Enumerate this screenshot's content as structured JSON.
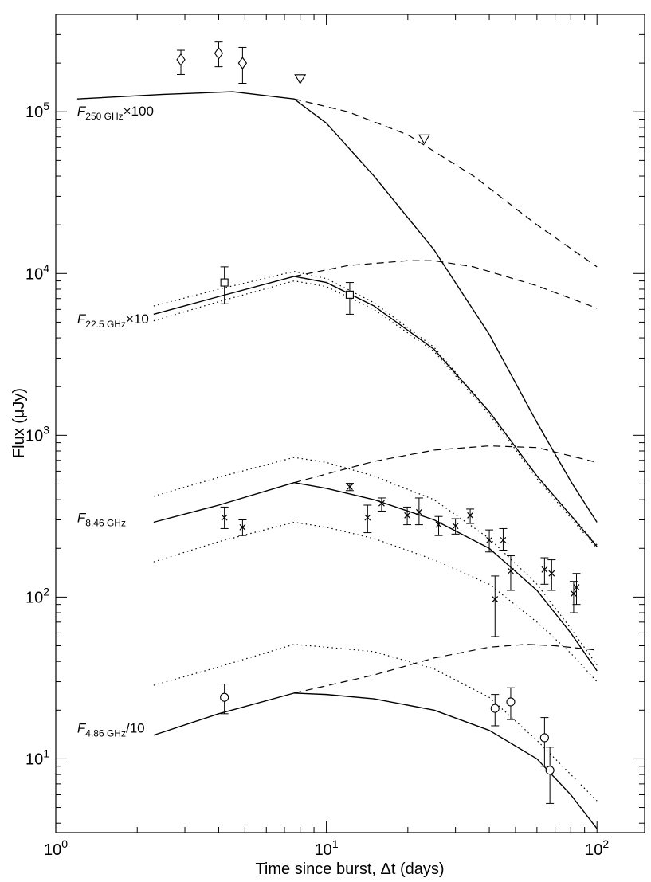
{
  "chart_data": {
    "type": "line",
    "xscale": "log",
    "yscale": "log",
    "xlim": [
      1,
      150
    ],
    "ylim": [
      3.5,
      400000
    ],
    "xlabel": "Time since burst, Δt  (days)",
    "ylabel": "Flux  (μJy)",
    "x_ticks": [
      {
        "value": 1,
        "mantissa": "10",
        "exp": "0"
      },
      {
        "value": 10,
        "mantissa": "10",
        "exp": "1"
      },
      {
        "value": 100,
        "mantissa": "10",
        "exp": "2"
      }
    ],
    "y_ticks": [
      {
        "value": 10,
        "mantissa": "10",
        "exp": "1"
      },
      {
        "value": 100,
        "mantissa": "10",
        "exp": "2"
      },
      {
        "value": 1000,
        "mantissa": "10",
        "exp": "3"
      },
      {
        "value": 10000,
        "mantissa": "10",
        "exp": "4"
      },
      {
        "value": 100000,
        "mantissa": "10",
        "exp": "5"
      }
    ],
    "series": [
      {
        "name": "F250GHz x100",
        "label": {
          "prefix": "F",
          "sub": "250 GHz",
          "suffix": "×100",
          "x": 1.2,
          "y": 95000
        },
        "models": {
          "solid": [
            [
              1.2,
              120000
            ],
            [
              2.5,
              128000
            ],
            [
              4.5,
              133000
            ],
            [
              7.6,
              120000
            ],
            [
              10,
              85000
            ],
            [
              15,
              40000
            ],
            [
              25,
              14000
            ],
            [
              40,
              4200
            ],
            [
              60,
              1200
            ],
            [
              80,
              520
            ],
            [
              100,
              290
            ]
          ],
          "dashed": [
            [
              7.6,
              120000
            ],
            [
              12,
              100000
            ],
            [
              20,
              72000
            ],
            [
              35,
              40000
            ],
            [
              60,
              20000
            ],
            [
              100,
              11000
            ]
          ]
        },
        "points": [
          {
            "x": 2.9,
            "y": 210000,
            "lo": 170000,
            "hi": 240000,
            "marker": "diamond"
          },
          {
            "x": 4.0,
            "y": 230000,
            "lo": 190000,
            "hi": 270000,
            "marker": "diamond"
          },
          {
            "x": 4.9,
            "y": 200000,
            "lo": 150000,
            "hi": 250000,
            "marker": "diamond"
          }
        ],
        "upper_limits": [
          {
            "x": 8.0,
            "y": 160000
          },
          {
            "x": 23.0,
            "y": 68000
          }
        ]
      },
      {
        "name": "F22.5GHz x10",
        "label": {
          "prefix": "F",
          "sub": "22.5 GHz",
          "suffix": "×10",
          "x": 1.2,
          "y": 4900
        },
        "models": {
          "solid": [
            [
              2.3,
              5600
            ],
            [
              4,
              7200
            ],
            [
              7.6,
              9600
            ],
            [
              10,
              8800
            ],
            [
              15,
              6300
            ],
            [
              25,
              3400
            ],
            [
              40,
              1400
            ],
            [
              60,
              560
            ],
            [
              80,
              320
            ],
            [
              100,
              205
            ]
          ],
          "dashed": [
            [
              7.6,
              9600
            ],
            [
              12,
              11200
            ],
            [
              20,
              12000
            ],
            [
              25,
              12000
            ],
            [
              35,
              11000
            ],
            [
              60,
              8400
            ],
            [
              100,
              6100
            ]
          ],
          "dotted_upper": [
            [
              2.3,
              6300
            ],
            [
              4,
              8000
            ],
            [
              7.6,
              10300
            ],
            [
              10,
              9300
            ],
            [
              15,
              6600
            ],
            [
              25,
              3500
            ],
            [
              40,
              1400
            ],
            [
              60,
              560
            ],
            [
              100,
              210
            ]
          ],
          "dotted_lower": [
            [
              2.3,
              5100
            ],
            [
              4,
              6700
            ],
            [
              7.6,
              9000
            ],
            [
              10,
              8300
            ],
            [
              15,
              6000
            ],
            [
              25,
              3300
            ],
            [
              40,
              1350
            ],
            [
              60,
              540
            ],
            [
              100,
              200
            ]
          ]
        },
        "points": [
          {
            "x": 4.2,
            "y": 8800,
            "lo": 6500,
            "hi": 11000,
            "marker": "square"
          },
          {
            "x": 12.2,
            "y": 7400,
            "lo": 5600,
            "hi": 8800,
            "marker": "square"
          }
        ],
        "upper_limits": []
      },
      {
        "name": "F8.46GHz",
        "label": {
          "prefix": "F",
          "sub": "8.46 GHz",
          "suffix": "",
          "x": 1.2,
          "y": 290
        },
        "models": {
          "solid": [
            [
              2.3,
              290
            ],
            [
              4,
              370
            ],
            [
              7.6,
              510
            ],
            [
              10,
              470
            ],
            [
              15,
              400
            ],
            [
              25,
              300
            ],
            [
              40,
              200
            ],
            [
              60,
              110
            ],
            [
              80,
              60
            ],
            [
              100,
              35
            ]
          ],
          "dashed": [
            [
              7.6,
              510
            ],
            [
              15,
              690
            ],
            [
              25,
              810
            ],
            [
              40,
              860
            ],
            [
              60,
              840
            ],
            [
              100,
              680
            ]
          ],
          "dotted_upper": [
            [
              2.3,
              420
            ],
            [
              4,
              550
            ],
            [
              7.6,
              730
            ],
            [
              10,
              680
            ],
            [
              15,
              560
            ],
            [
              25,
              400
            ],
            [
              40,
              230
            ],
            [
              60,
              120
            ],
            [
              80,
              64
            ],
            [
              100,
              38
            ]
          ],
          "dotted_lower": [
            [
              2.3,
              165
            ],
            [
              4,
              220
            ],
            [
              7.6,
              290
            ],
            [
              10,
              270
            ],
            [
              15,
              230
            ],
            [
              25,
              170
            ],
            [
              40,
              120
            ],
            [
              60,
              70
            ],
            [
              80,
              45
            ],
            [
              100,
              30
            ]
          ]
        },
        "points": [
          {
            "x": 4.2,
            "y": 310,
            "lo": 265,
            "hi": 360,
            "marker": "cross"
          },
          {
            "x": 4.9,
            "y": 270,
            "lo": 240,
            "hi": 300,
            "marker": "cross"
          },
          {
            "x": 12.2,
            "y": 480,
            "lo": 455,
            "hi": 505,
            "marker": "cross"
          },
          {
            "x": 14.2,
            "y": 310,
            "lo": 250,
            "hi": 370,
            "marker": "cross"
          },
          {
            "x": 16.0,
            "y": 380,
            "lo": 340,
            "hi": 410,
            "marker": "cross"
          },
          {
            "x": 19.9,
            "y": 320,
            "lo": 280,
            "hi": 360,
            "marker": "cross"
          },
          {
            "x": 22.0,
            "y": 335,
            "lo": 280,
            "hi": 410,
            "marker": "cross"
          },
          {
            "x": 26.0,
            "y": 280,
            "lo": 240,
            "hi": 315,
            "marker": "cross"
          },
          {
            "x": 30.0,
            "y": 275,
            "lo": 245,
            "hi": 305,
            "marker": "cross"
          },
          {
            "x": 34.0,
            "y": 320,
            "lo": 285,
            "hi": 350,
            "marker": "cross"
          },
          {
            "x": 40.0,
            "y": 225,
            "lo": 190,
            "hi": 260,
            "marker": "cross"
          },
          {
            "x": 42.0,
            "y": 97,
            "lo": 57,
            "hi": 135,
            "marker": "cross"
          },
          {
            "x": 45.0,
            "y": 225,
            "lo": 195,
            "hi": 265,
            "marker": "cross"
          },
          {
            "x": 48.0,
            "y": 145,
            "lo": 110,
            "hi": 180,
            "marker": "cross"
          },
          {
            "x": 64.0,
            "y": 148,
            "lo": 120,
            "hi": 175,
            "marker": "cross"
          },
          {
            "x": 68.0,
            "y": 140,
            "lo": 110,
            "hi": 170,
            "marker": "cross"
          },
          {
            "x": 82.0,
            "y": 105,
            "lo": 80,
            "hi": 125,
            "marker": "cross"
          },
          {
            "x": 84.0,
            "y": 115,
            "lo": 90,
            "hi": 140,
            "marker": "cross"
          }
        ],
        "upper_limits": []
      },
      {
        "name": "F4.86GHz /10",
        "label": {
          "prefix": "F",
          "sub": "4.86 GHz",
          "suffix": "/10",
          "x": 1.2,
          "y": 14.5
        },
        "models": {
          "solid": [
            [
              2.3,
              14
            ],
            [
              4,
              19
            ],
            [
              7.6,
              25.5
            ],
            [
              10,
              25
            ],
            [
              15,
              23.5
            ],
            [
              25,
              20
            ],
            [
              40,
              15
            ],
            [
              60,
              10
            ],
            [
              80,
              6
            ],
            [
              100,
              3.7
            ]
          ],
          "dashed": [
            [
              7.6,
              25.5
            ],
            [
              15,
              33
            ],
            [
              25,
              42
            ],
            [
              40,
              49
            ],
            [
              55,
              51
            ],
            [
              70,
              50
            ],
            [
              100,
              47
            ]
          ],
          "dotted_upper": [
            [
              2.3,
              28.5
            ],
            [
              4,
              37
            ],
            [
              7.6,
              51
            ],
            [
              10,
              49
            ],
            [
              15,
              46
            ],
            [
              25,
              36
            ],
            [
              40,
              24
            ],
            [
              60,
              13
            ],
            [
              80,
              8
            ],
            [
              100,
              5.5
            ]
          ],
          "dotted_lower": null
        },
        "points": [
          {
            "x": 4.2,
            "y": 24,
            "lo": 19,
            "hi": 29,
            "marker": "circle"
          },
          {
            "x": 42.0,
            "y": 20.5,
            "lo": 16,
            "hi": 25,
            "marker": "circle"
          },
          {
            "x": 48.0,
            "y": 22.5,
            "lo": 17.5,
            "hi": 27.5,
            "marker": "circle"
          },
          {
            "x": 64.0,
            "y": 13.5,
            "lo": 9,
            "hi": 18,
            "marker": "circle"
          },
          {
            "x": 67.0,
            "y": 8.5,
            "lo": 5.3,
            "hi": 11.8,
            "marker": "circle"
          }
        ],
        "upper_limits": []
      }
    ]
  }
}
